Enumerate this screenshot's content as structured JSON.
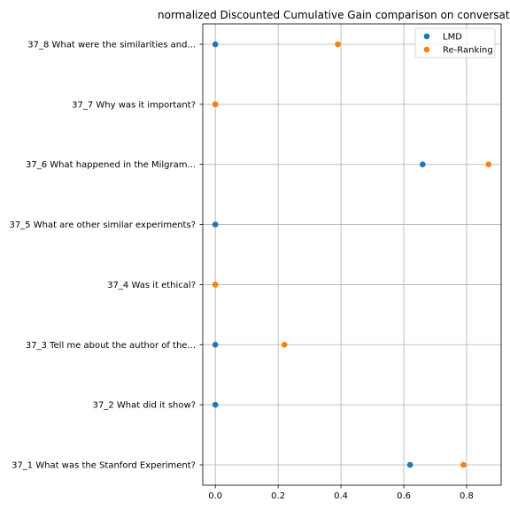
{
  "chart_data": {
    "type": "scatter",
    "title": "normalized Discounted Cumulative Gain comparison on conversat",
    "xlabel": "",
    "ylabel": "",
    "xlim": [
      -0.04,
      0.91
    ],
    "x_ticks": [
      0.0,
      0.2,
      0.4,
      0.6,
      0.8
    ],
    "x_tick_labels": [
      "0.0",
      "0.2",
      "0.4",
      "0.6",
      "0.8"
    ],
    "categories": [
      "37_1 What was the Stanford Experiment?",
      "37_2 What did it show?",
      "37_3 Tell me about the author of the...",
      "37_4 Was it ethical?",
      "37_5 What are other similar experiments?",
      "37_6 What happened in the Milgram...",
      "37_7 Why was it important?",
      "37_8 What were the similarities and..."
    ],
    "series": [
      {
        "name": "LMD",
        "color": "#1f77b4",
        "values": [
          0.62,
          0.0,
          0.0,
          0.0,
          0.0,
          0.66,
          0.0,
          0.0
        ]
      },
      {
        "name": "Re-Ranking",
        "color": "#ff7f0e",
        "values": [
          0.79,
          null,
          0.22,
          0.0,
          null,
          0.87,
          0.0,
          0.39
        ]
      }
    ],
    "grid": true,
    "legend_position": "top-right"
  }
}
